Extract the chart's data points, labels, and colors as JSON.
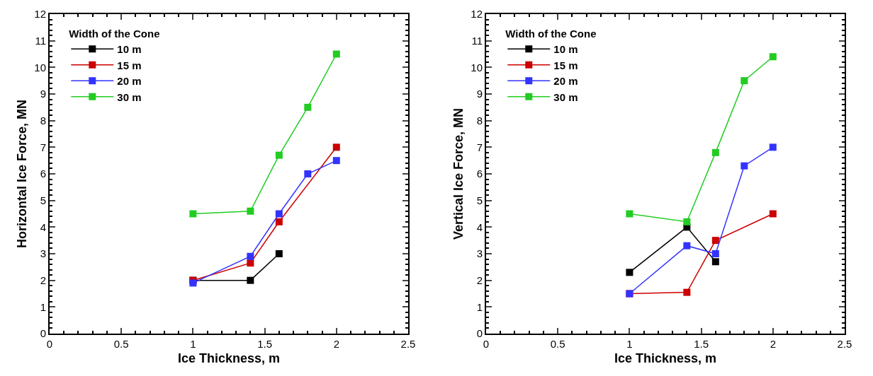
{
  "chart_data": [
    {
      "type": "line",
      "xlabel": "Ice Thickness, m",
      "ylabel": "Horizontal Ice Force, MN",
      "legend_title": "Width of the Cone",
      "legend": "top left",
      "marker": "square",
      "grid": false,
      "xlim": [
        0,
        2.5
      ],
      "xticks": [
        0,
        0.5,
        1,
        1.5,
        2,
        2.5
      ],
      "ylim": [
        0,
        12
      ],
      "yticks": [
        0,
        1,
        2,
        3,
        4,
        5,
        6,
        7,
        8,
        9,
        10,
        11,
        12
      ],
      "series": [
        {
          "name": "10 m",
          "color": "#000000",
          "x": [
            1,
            1.4,
            1.6
          ],
          "values": [
            2,
            2,
            3
          ]
        },
        {
          "name": "15 m",
          "color": "#cc0000",
          "x": [
            1,
            1.4,
            1.6,
            2
          ],
          "values": [
            2,
            2.65,
            4.2,
            7
          ]
        },
        {
          "name": "20 m",
          "color": "#3333ff",
          "x": [
            1,
            1.4,
            1.6,
            1.8,
            2
          ],
          "values": [
            1.9,
            2.9,
            4.5,
            6,
            6.5
          ]
        },
        {
          "name": "30 m",
          "color": "#22cc22",
          "x": [
            1,
            1.4,
            1.6,
            1.8,
            2
          ],
          "values": [
            4.5,
            4.6,
            6.7,
            8.5,
            10.5
          ]
        }
      ]
    },
    {
      "type": "line",
      "xlabel": "Ice Thickness, m",
      "ylabel": "Vertical Ice Force, MN",
      "legend_title": "Width of the Cone",
      "legend": "top left",
      "marker": "square",
      "grid": false,
      "xlim": [
        0,
        2.5
      ],
      "xticks": [
        0,
        0.5,
        1,
        1.5,
        2,
        2.5
      ],
      "ylim": [
        0,
        12
      ],
      "yticks": [
        0,
        1,
        2,
        3,
        4,
        5,
        6,
        7,
        8,
        9,
        10,
        11,
        12
      ],
      "series": [
        {
          "name": "10 m",
          "color": "#000000",
          "x": [
            1,
            1.4,
            1.6
          ],
          "values": [
            2.3,
            4,
            2.7
          ]
        },
        {
          "name": "15 m",
          "color": "#cc0000",
          "x": [
            1,
            1.4,
            1.6,
            2
          ],
          "values": [
            1.5,
            1.55,
            3.5,
            4.5
          ]
        },
        {
          "name": "20 m",
          "color": "#3333ff",
          "x": [
            1,
            1.4,
            1.6,
            1.8,
            2
          ],
          "values": [
            1.5,
            3.3,
            3,
            6.3,
            7
          ]
        },
        {
          "name": "30 m",
          "color": "#22cc22",
          "x": [
            1,
            1.4,
            1.6,
            1.8,
            2
          ],
          "values": [
            4.5,
            4.2,
            6.8,
            9.5,
            10.4
          ]
        }
      ]
    }
  ]
}
